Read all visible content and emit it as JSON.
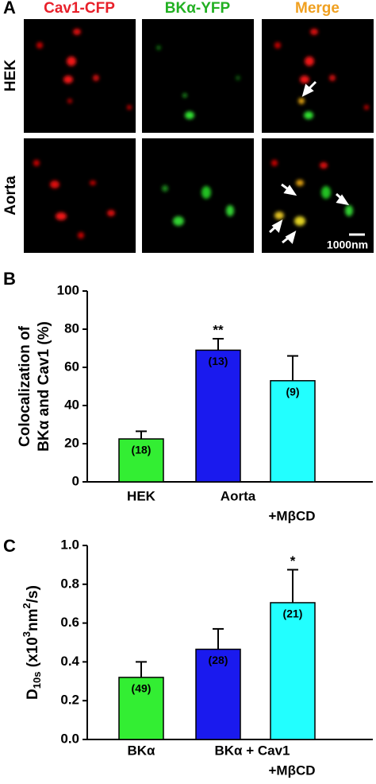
{
  "panel_a": {
    "label": "A",
    "columns": [
      "Cav1-CFP",
      "BKα-YFP",
      "Merge"
    ],
    "rows": [
      "HEK",
      "Aorta"
    ],
    "scale_bar": "1000nm"
  },
  "chart_data": [
    {
      "type": "bar",
      "panel_label": "B",
      "y_label": [
        "Colocalization of",
        "BKα and Cav1 (%)"
      ],
      "categories": [
        "HEK",
        "Aorta",
        "+MβCD"
      ],
      "values": [
        22.5,
        69,
        53
      ],
      "errors": [
        4,
        6,
        13
      ],
      "colors": [
        "#33ee33",
        "#1a1aee",
        "#22ffff"
      ],
      "n_labels": [
        "(18)",
        "(13)",
        "(9)"
      ],
      "significance": [
        null,
        "**",
        null
      ],
      "ylim": [
        0,
        100
      ],
      "yticks": [
        0,
        20,
        40,
        60,
        80,
        100
      ]
    },
    {
      "type": "bar",
      "panel_label": "C",
      "y_label": [
        "D",
        "10s",
        " (x10",
        "3",
        "nm",
        "2",
        "/s)"
      ],
      "categories": [
        "BKα",
        "BKα + Cav1",
        "+MβCD"
      ],
      "values": [
        0.32,
        0.465,
        0.705
      ],
      "errors": [
        0.08,
        0.105,
        0.17
      ],
      "colors": [
        "#33ee33",
        "#1a1aee",
        "#22ffff"
      ],
      "n_labels": [
        "(49)",
        "(28)",
        "(21)"
      ],
      "significance": [
        null,
        null,
        "*"
      ],
      "ylim": [
        0,
        1
      ],
      "yticks": [
        {
          "value": 0,
          "label": "0.0"
        },
        {
          "value": 0.2,
          "label": "0.2"
        },
        {
          "value": 0.4,
          "label": "0.4"
        },
        {
          "value": 0.6,
          "label": "0.6"
        },
        {
          "value": 0.8,
          "label": "0.8"
        },
        {
          "value": 1,
          "label": "1.0"
        }
      ]
    }
  ]
}
